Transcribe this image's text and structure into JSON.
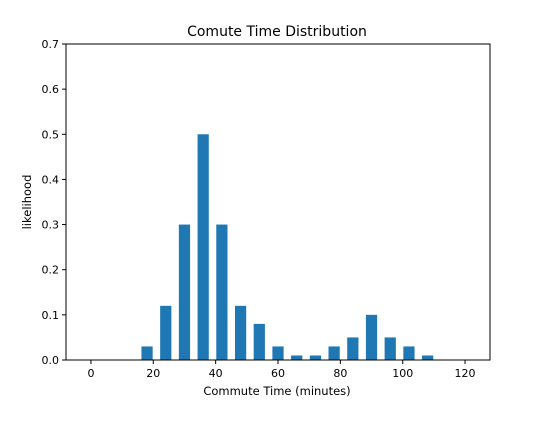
{
  "chart_data": {
    "type": "bar",
    "title": "Comute Time Distribution",
    "xlabel": "Commute Time (minutes)",
    "ylabel": "likelihood",
    "x": [
      18,
      24,
      30,
      36,
      42,
      48,
      54,
      60,
      66,
      72,
      78,
      84,
      90,
      96,
      102,
      108
    ],
    "values": [
      0.03,
      0.12,
      0.3,
      0.5,
      0.3,
      0.12,
      0.08,
      0.03,
      0.01,
      0.01,
      0.03,
      0.05,
      0.1,
      0.05,
      0.03,
      0.01
    ],
    "bar_width": 3.6,
    "xlim": [
      -8,
      128
    ],
    "ylim": [
      0,
      0.7
    ],
    "xticks": [
      0,
      20,
      40,
      60,
      80,
      100,
      120
    ],
    "yticks": [
      0.0,
      0.1,
      0.2,
      0.3,
      0.4,
      0.5,
      0.6,
      0.7
    ],
    "xtick_labels": [
      "0",
      "20",
      "40",
      "60",
      "80",
      "100",
      "120"
    ],
    "ytick_labels": [
      "0.0",
      "0.1",
      "0.2",
      "0.3",
      "0.4",
      "0.5",
      "0.6",
      "0.7"
    ],
    "grid": false,
    "legend": "none",
    "bar_color": "#1f77b4"
  }
}
